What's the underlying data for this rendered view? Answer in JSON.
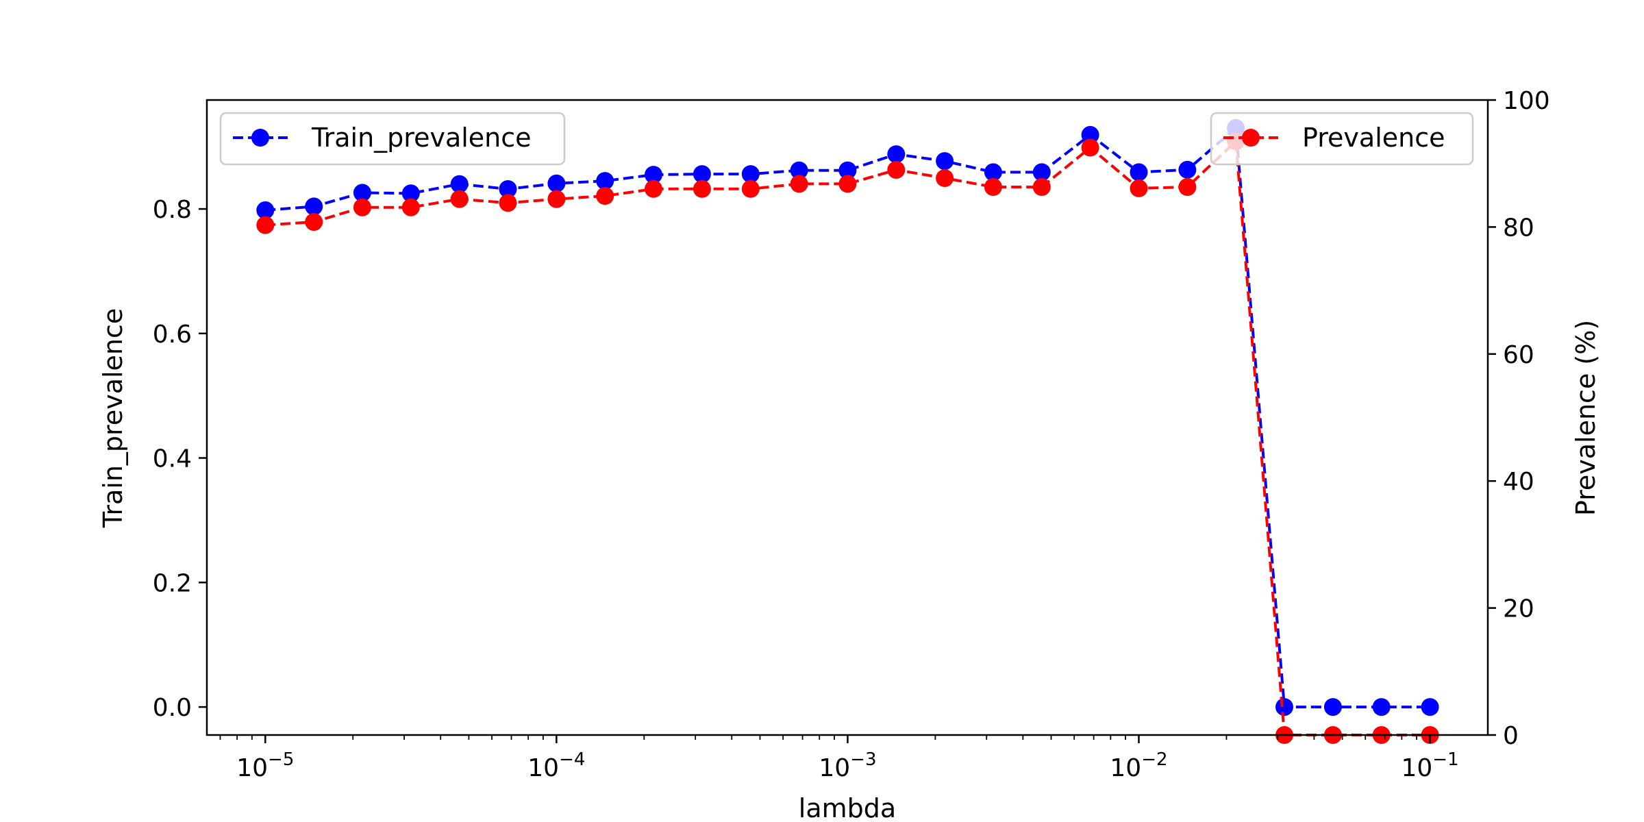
{
  "chart_data": {
    "type": "line",
    "title": "",
    "xlabel": "lambda",
    "xscale": "log",
    "xlim": [
      6.3e-06,
      0.158
    ],
    "x_ticks": [
      {
        "value": 1e-05,
        "mantissa": "10",
        "exponent": "−5"
      },
      {
        "value": 0.0001,
        "mantissa": "10",
        "exponent": "−4"
      },
      {
        "value": 0.001,
        "mantissa": "10",
        "exponent": "−3"
      },
      {
        "value": 0.01,
        "mantissa": "10",
        "exponent": "−2"
      },
      {
        "value": 0.1,
        "mantissa": "10",
        "exponent": "−1"
      }
    ],
    "y_left": {
      "label": "Train_prevalence",
      "ylim": [
        -0.045,
        0.975
      ],
      "ticks": [
        {
          "value": 0.0,
          "label": "0.0"
        },
        {
          "value": 0.2,
          "label": "0.2"
        },
        {
          "value": 0.4,
          "label": "0.4"
        },
        {
          "value": 0.6,
          "label": "0.6"
        },
        {
          "value": 0.8,
          "label": "0.8"
        }
      ]
    },
    "y_right": {
      "label": "Prevalence (%)",
      "ylim": [
        0,
        100
      ],
      "ticks": [
        {
          "value": 0,
          "label": "0"
        },
        {
          "value": 20,
          "label": "20"
        },
        {
          "value": 40,
          "label": "40"
        },
        {
          "value": 60,
          "label": "60"
        },
        {
          "value": 80,
          "label": "80"
        },
        {
          "value": 100,
          "label": "100"
        }
      ]
    },
    "x": [
      1e-05,
      1.468e-05,
      2.154e-05,
      3.162e-05,
      4.642e-05,
      6.813e-05,
      0.0001,
      0.0001468,
      0.0002154,
      0.0003162,
      0.0004642,
      0.0006813,
      0.001,
      0.001468,
      0.002154,
      0.003162,
      0.004642,
      0.006813,
      0.01,
      0.01468,
      0.02154,
      0.03162,
      0.04642,
      0.06813,
      0.1
    ],
    "series": [
      {
        "name": "Train_prevalence",
        "axis": "left",
        "color": "#0000ff",
        "style": "dashed",
        "marker": "circle",
        "values": [
          0.798,
          0.804,
          0.826,
          0.825,
          0.84,
          0.832,
          0.841,
          0.845,
          0.855,
          0.856,
          0.856,
          0.862,
          0.862,
          0.888,
          0.877,
          0.859,
          0.859,
          0.919,
          0.859,
          0.863,
          0.93,
          0.0,
          0.0,
          0.0,
          0.0
        ]
      },
      {
        "name": "Prevalence",
        "axis": "right",
        "color": "#ff0000",
        "style": "dashed",
        "marker": "circle",
        "values": [
          80.3,
          80.8,
          83.1,
          83.1,
          84.4,
          83.8,
          84.4,
          84.9,
          86.0,
          86.0,
          86.0,
          86.8,
          86.8,
          89.0,
          87.7,
          86.3,
          86.3,
          92.5,
          86.1,
          86.3,
          93.5,
          0.0,
          0.0,
          0.0,
          0.0
        ]
      }
    ],
    "legends": [
      {
        "series": "Train_prevalence",
        "position": "upper-left"
      },
      {
        "series": "Prevalence",
        "position": "upper-right"
      }
    ],
    "grid": false
  }
}
